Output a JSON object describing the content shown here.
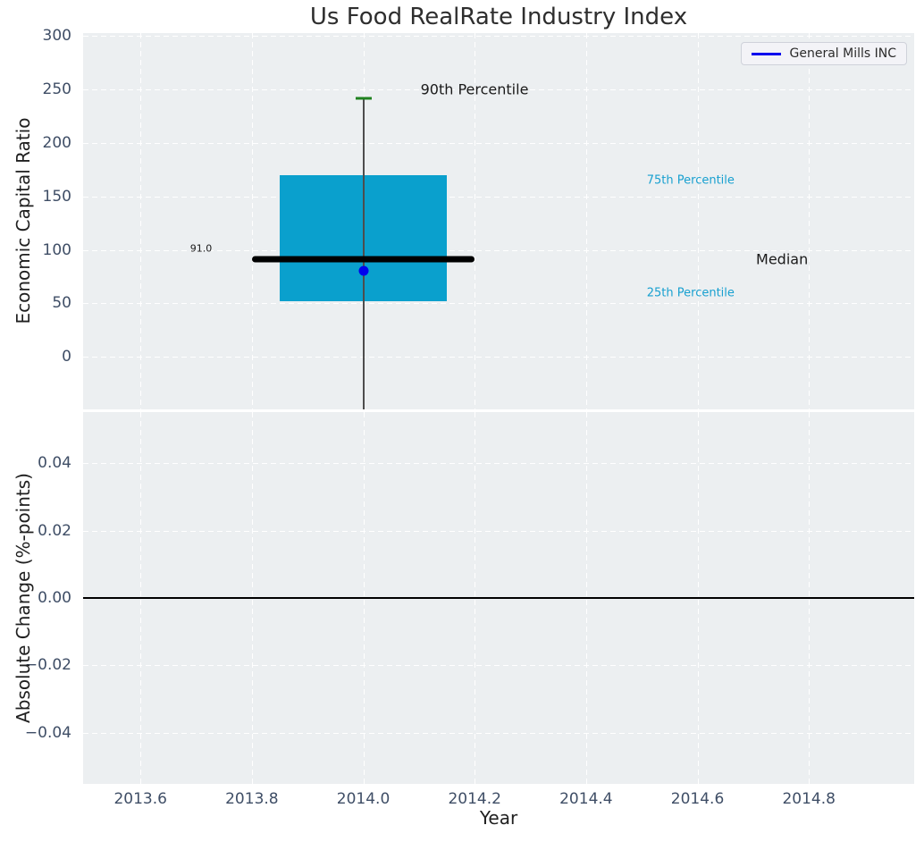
{
  "title": "Us Food RealRate Industry Index",
  "x_axis": {
    "label": "Year",
    "lim": [
      2013.497,
      2014.989
    ],
    "ticks": [
      {
        "v": 2013.6,
        "label": "2013.6"
      },
      {
        "v": 2013.8,
        "label": "2013.8"
      },
      {
        "v": 2014.0,
        "label": "2014.0"
      },
      {
        "v": 2014.2,
        "label": "2014.2"
      },
      {
        "v": 2014.4,
        "label": "2014.4"
      },
      {
        "v": 2014.6,
        "label": "2014.6"
      },
      {
        "v": 2014.8,
        "label": "2014.8"
      }
    ]
  },
  "legend": {
    "label": "General Mills INC"
  },
  "labels": {
    "p90": "90th Percentile",
    "p75": "75th Percentile",
    "p25": "25th Percentile",
    "median": "Median",
    "median_value": "91.0"
  },
  "colors": {
    "box": "#0aa0cd",
    "median_line": "#000000",
    "whisker": "#4d4d4d",
    "p90_cap": "#1f821f",
    "company_point": "#0000ee",
    "legend_line": "#0000ee",
    "percentile_text": "#18a0d0",
    "axes_background": "#eceff1",
    "grid": "#ffffff",
    "tick_text": "#3f4e66",
    "zero_line": "#000000"
  },
  "chart_data": [
    {
      "type": "boxplot",
      "title": "Us Food RealRate Industry Index",
      "xlabel": "Year",
      "ylabel": "Economic Capital Ratio",
      "ylim": [
        -49.2,
        302.8
      ],
      "yticks": [
        {
          "v": 300,
          "label": "300"
        },
        {
          "v": 250,
          "label": "250"
        },
        {
          "v": 200,
          "label": "200"
        },
        {
          "v": 150,
          "label": "150"
        },
        {
          "v": 100,
          "label": "100"
        },
        {
          "v": 50,
          "label": "50"
        },
        {
          "v": 0,
          "label": "0"
        }
      ],
      "grid": "white-dashed",
      "legend_entries": [
        "General Mills INC"
      ],
      "legend_position": "upper right",
      "box": {
        "x": 2014.0,
        "box_halfwidth": 0.15,
        "median_halfwidth": 0.2,
        "q1": 52,
        "median": 91,
        "q3": 170,
        "p90": 242,
        "whisker_low_visible": -49,
        "whisker_low_clipped": true
      },
      "point": {
        "name": "General Mills INC",
        "x": 2014.0,
        "y": 80
      }
    },
    {
      "type": "line",
      "xlabel": "Year",
      "ylabel": "Absolute Change (%-points)",
      "ylim": [
        -0.0551,
        0.0551
      ],
      "yticks": [
        {
          "v": 0.04,
          "label": "0.04"
        },
        {
          "v": 0.02,
          "label": "0.02"
        },
        {
          "v": 0.0,
          "label": "0.00"
        },
        {
          "v": -0.02,
          "label": "−0.02"
        },
        {
          "v": -0.04,
          "label": "−0.04"
        }
      ],
      "grid": "white-dashed",
      "zero_line": 0.0,
      "series": []
    }
  ]
}
